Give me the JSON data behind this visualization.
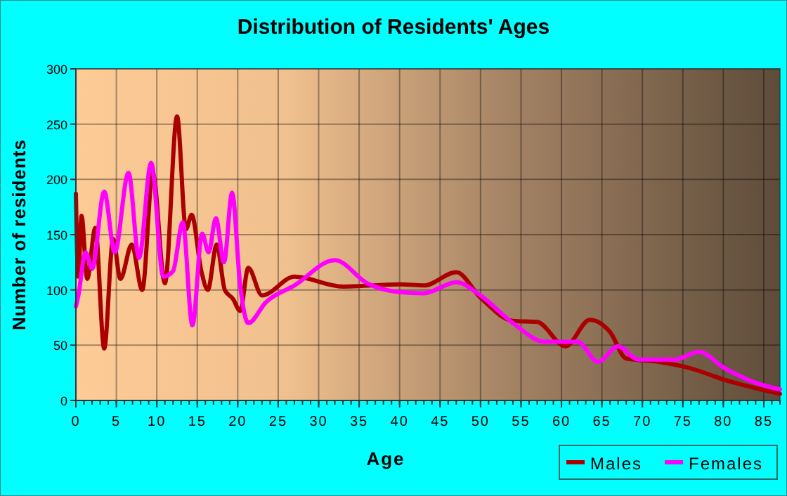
{
  "chart_data": {
    "type": "line",
    "title": "Distribution of Residents' Ages",
    "xlabel": "Age",
    "ylabel": "Number of residents",
    "xlim": [
      0,
      87
    ],
    "xticks": [
      0,
      5,
      10,
      15,
      20,
      25,
      30,
      35,
      40,
      45,
      50,
      55,
      60,
      65,
      70,
      75,
      80,
      85
    ],
    "ylim": [
      0,
      300
    ],
    "yticks": [
      0,
      50,
      100,
      150,
      200,
      250,
      300
    ],
    "grid": true,
    "legend": "bottom right",
    "marker": "none",
    "line_style": "solid",
    "series": [
      {
        "name": "Males",
        "color": "#aa0000",
        "x": [
          0,
          0.3,
          0.7,
          1.4,
          2.4,
          3.5,
          4.6,
          5.5,
          6.9,
          8.2,
          9.5,
          11,
          12.5,
          13.6,
          14.3,
          15.5,
          16.3,
          17.4,
          18.4,
          19.4,
          20.3,
          21.3,
          23,
          27,
          33,
          40,
          43,
          47,
          50,
          54,
          57,
          60.5,
          63.5,
          66,
          68,
          72,
          76,
          80,
          87
        ],
        "values": [
          187,
          112,
          167,
          110,
          156,
          47,
          146,
          110,
          141,
          100,
          206,
          106,
          257,
          155,
          168,
          117,
          100,
          141,
          100,
          92,
          81,
          120,
          95,
          112,
          103,
          105,
          104,
          116,
          93,
          72,
          71,
          49,
          73,
          62,
          38,
          35,
          29,
          19,
          6
        ]
      },
      {
        "name": "Females",
        "color": "#ff00ff",
        "x": [
          0,
          0.3,
          1.2,
          2,
          3.5,
          4.8,
          6.5,
          7.8,
          9.3,
          10.8,
          12,
          13.2,
          14.4,
          15.6,
          16.4,
          17.3,
          18.3,
          19.3,
          20.3,
          21.3,
          23.5,
          27,
          32,
          36,
          40,
          43,
          47,
          50,
          54,
          58,
          62,
          64.5,
          67,
          69.5,
          74,
          77,
          80,
          84,
          87
        ],
        "values": [
          85,
          95,
          134,
          119,
          189,
          134,
          206,
          129,
          215,
          112,
          117,
          161,
          68,
          151,
          134,
          165,
          125,
          188,
          104,
          70,
          89,
          104,
          127,
          106,
          98,
          97,
          107,
          95,
          70,
          53,
          53,
          35,
          49,
          37,
          37,
          44,
          30,
          16,
          10
        ]
      }
    ]
  }
}
